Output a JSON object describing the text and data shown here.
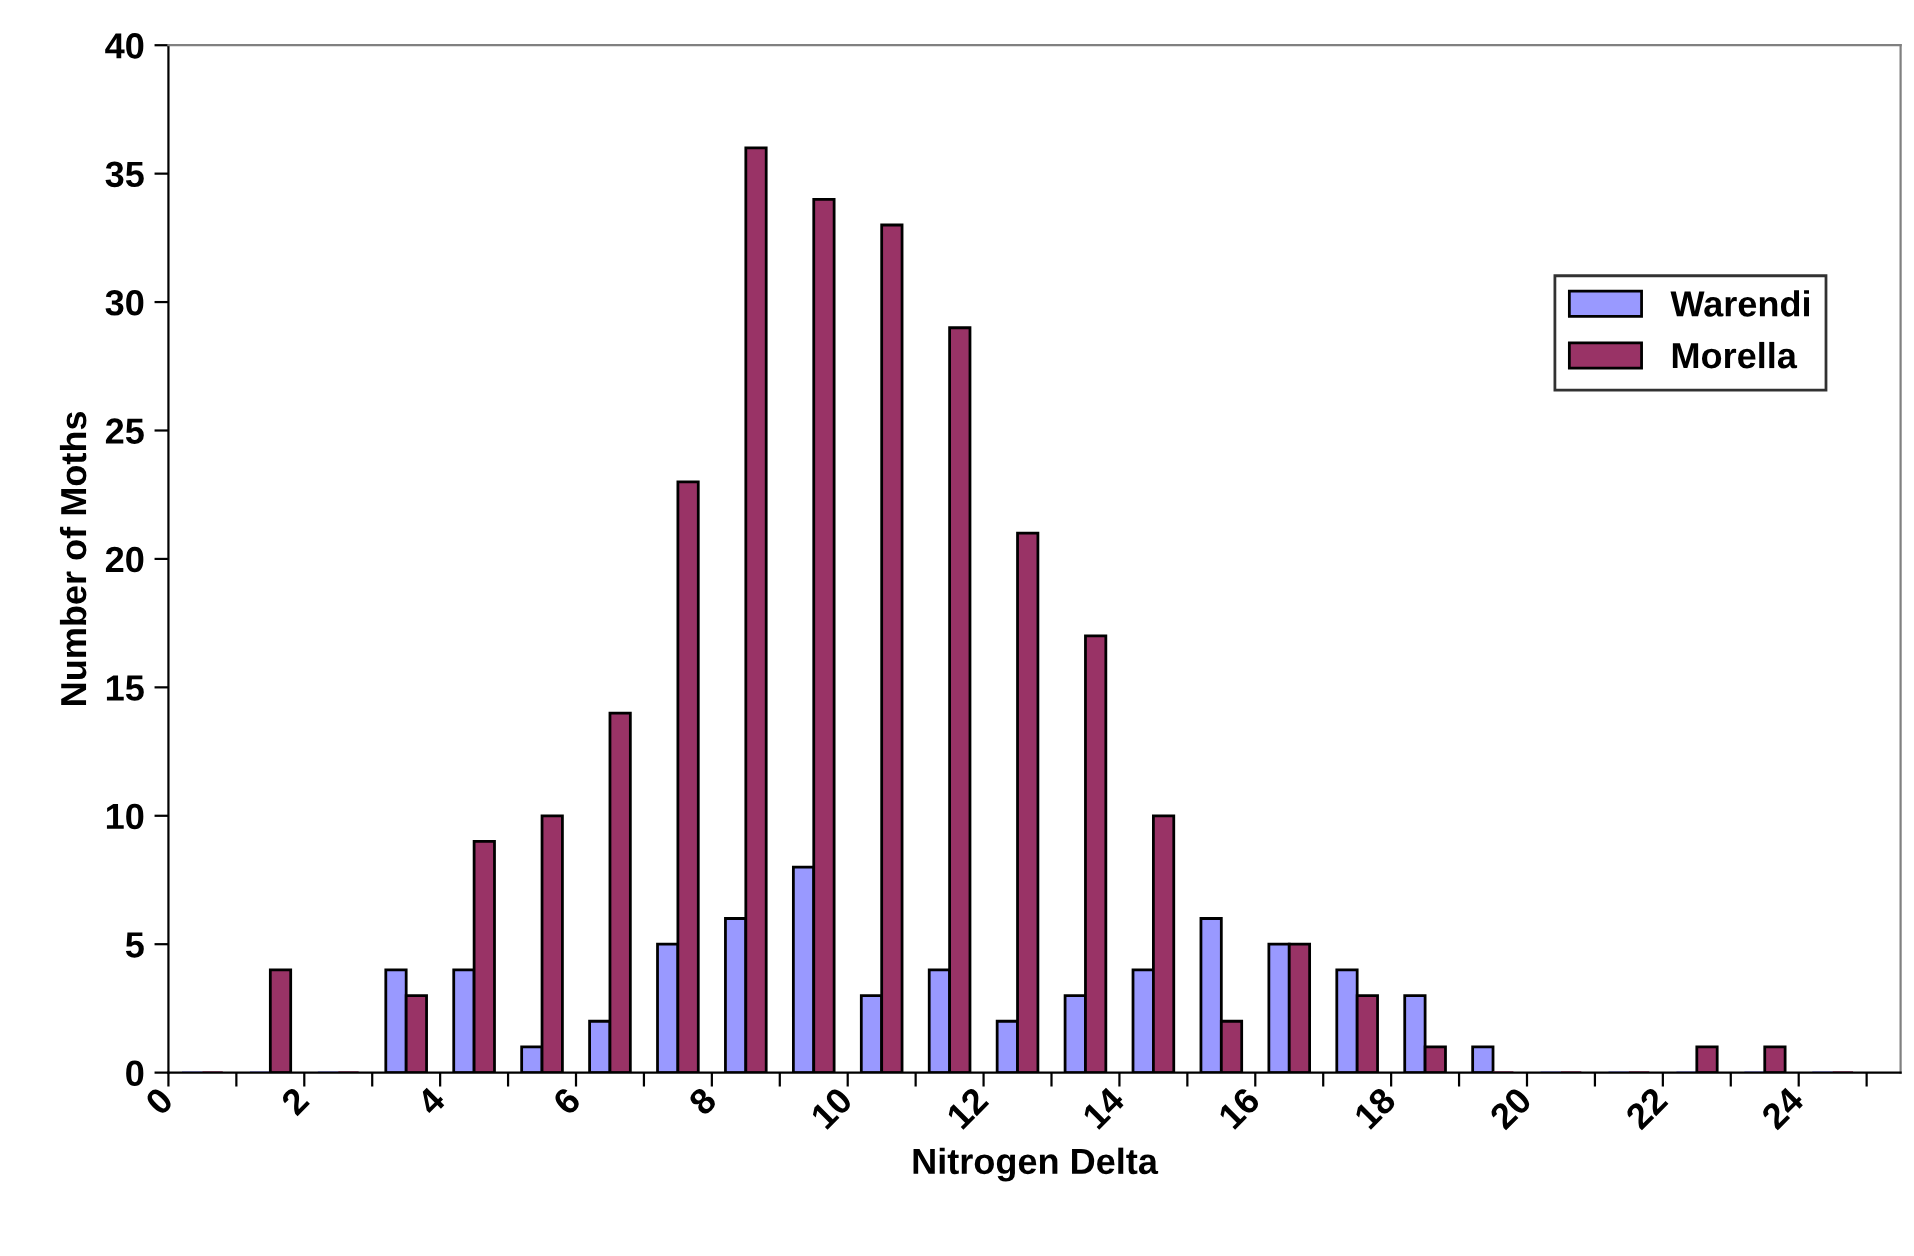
{
  "chart_data": {
    "type": "bar",
    "xlabel": "Nitrogen Delta",
    "ylabel": "Number of Moths",
    "x": [
      0.5,
      1.5,
      2.5,
      3.5,
      4.5,
      5.5,
      6.5,
      7.5,
      8.5,
      9.5,
      10.5,
      11.5,
      12.5,
      13.5,
      14.5,
      15.5,
      16.5,
      17.5,
      18.5,
      19.5,
      20.5,
      21.5,
      22.5,
      23.5,
      24.5
    ],
    "series": [
      {
        "name": "Warendi",
        "color": "#9999ff",
        "values": [
          0,
          0,
          0,
          4,
          4,
          1,
          2,
          5,
          6,
          8,
          3,
          4,
          2,
          3,
          4,
          6,
          5,
          4,
          3,
          1,
          0,
          0,
          0,
          0,
          0
        ]
      },
      {
        "name": "Morella",
        "color": "#993366",
        "values": [
          0,
          4,
          0,
          3,
          9,
          10,
          14,
          23,
          36,
          34,
          33,
          29,
          21,
          17,
          10,
          2,
          5,
          3,
          1,
          0,
          0,
          0,
          1,
          1,
          0
        ]
      }
    ],
    "xlim": [
      0,
      25.5
    ],
    "xticks": [
      0,
      {
        "value": 1,
        "label": null
      },
      2,
      {
        "value": 3,
        "label": null
      },
      4,
      {
        "value": 5,
        "label": null
      },
      6,
      {
        "value": 7,
        "label": null
      },
      8,
      {
        "value": 9,
        "label": null
      },
      10,
      {
        "value": 11,
        "label": null
      },
      12,
      {
        "value": 13,
        "label": null
      },
      14,
      {
        "value": 15,
        "label": null
      },
      16,
      {
        "value": 17,
        "label": null
      },
      18,
      {
        "value": 19,
        "label": null
      },
      20,
      {
        "value": 21,
        "label": null
      },
      22,
      {
        "value": 23,
        "label": null
      },
      24,
      {
        "value": 25,
        "label": null
      }
    ],
    "ylim": [
      0,
      40
    ],
    "yticks": [
      0,
      5,
      10,
      15,
      20,
      25,
      30,
      35,
      40
    ],
    "grid": false,
    "legend": "right"
  }
}
